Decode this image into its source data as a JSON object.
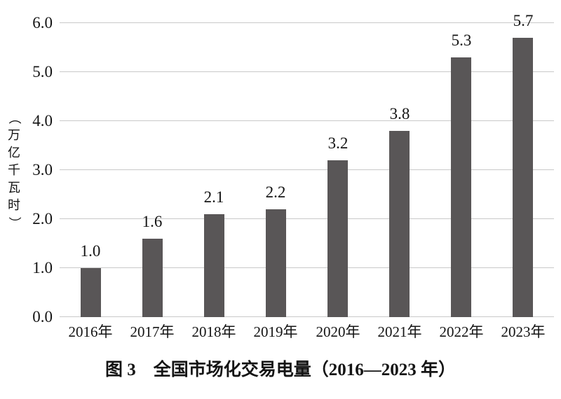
{
  "chart_data": {
    "type": "bar",
    "title": "图 3　全国市场化交易电量（2016—2023 年）",
    "ylabel": "（万亿千瓦时）",
    "xlabel": "",
    "categories": [
      "2016年",
      "2017年",
      "2018年",
      "2019年",
      "2020年",
      "2021年",
      "2022年",
      "2023年"
    ],
    "values": [
      1.0,
      1.6,
      2.1,
      2.2,
      3.2,
      3.8,
      5.3,
      5.7
    ],
    "value_labels": [
      "1.0",
      "1.6",
      "2.1",
      "2.2",
      "3.2",
      "3.8",
      "5.3",
      "5.7"
    ],
    "y_tick_labels": [
      "0.0",
      "1.0",
      "2.0",
      "3.0",
      "4.0",
      "5.0",
      "6.0"
    ],
    "ylim": [
      0,
      6
    ],
    "grid": "horizontal",
    "legend": "none",
    "colors": {
      "bar": "#595657",
      "gridline": "#c9c9c9",
      "text": "#141414",
      "background": "#ffffff"
    }
  }
}
